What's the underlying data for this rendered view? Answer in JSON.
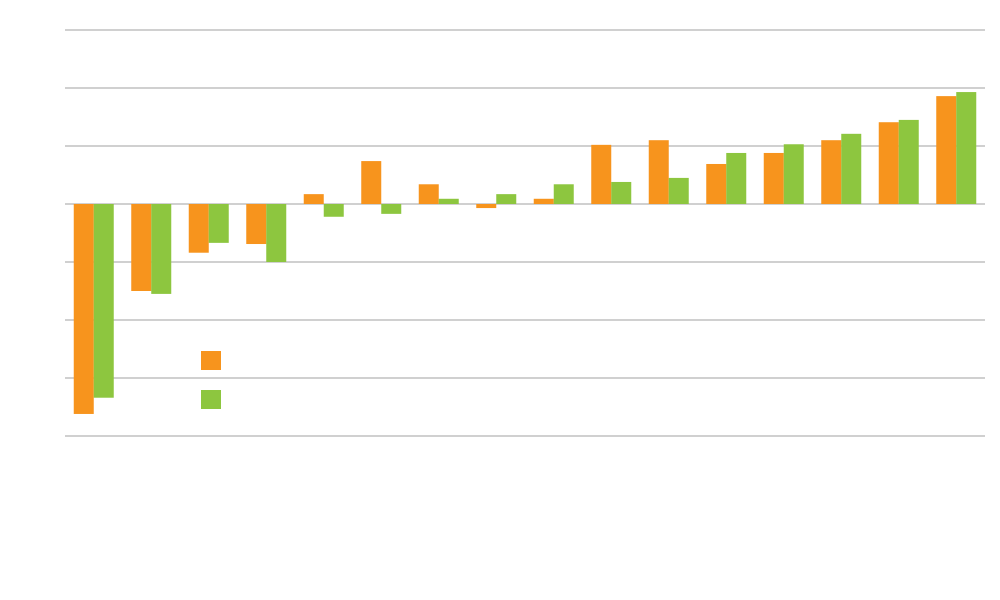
{
  "chart_data": {
    "type": "bar",
    "categories": [
      null,
      null,
      null,
      null,
      null,
      null,
      null,
      null,
      null,
      null,
      null,
      null,
      null,
      null,
      null,
      null
    ],
    "series": [
      {
        "color": "#f7941d",
        "values": [
          -3.62,
          -1.5,
          -0.84,
          -0.69,
          0.17,
          0.74,
          0.34,
          -0.07,
          0.09,
          1.02,
          1.1,
          0.69,
          0.88,
          1.1,
          1.41,
          1.86
        ]
      },
      {
        "color": "#8dc63f",
        "values": [
          -3.34,
          -1.55,
          -0.67,
          -1.0,
          -0.22,
          -0.17,
          0.09,
          0.17,
          0.34,
          0.38,
          0.45,
          0.88,
          1.03,
          1.21,
          1.45,
          1.93
        ]
      }
    ],
    "ylim": [
      -4,
      3
    ],
    "yticks": [
      -4,
      -3,
      -2,
      -1,
      0,
      1,
      2,
      3
    ],
    "grid": true,
    "legend": true
  }
}
